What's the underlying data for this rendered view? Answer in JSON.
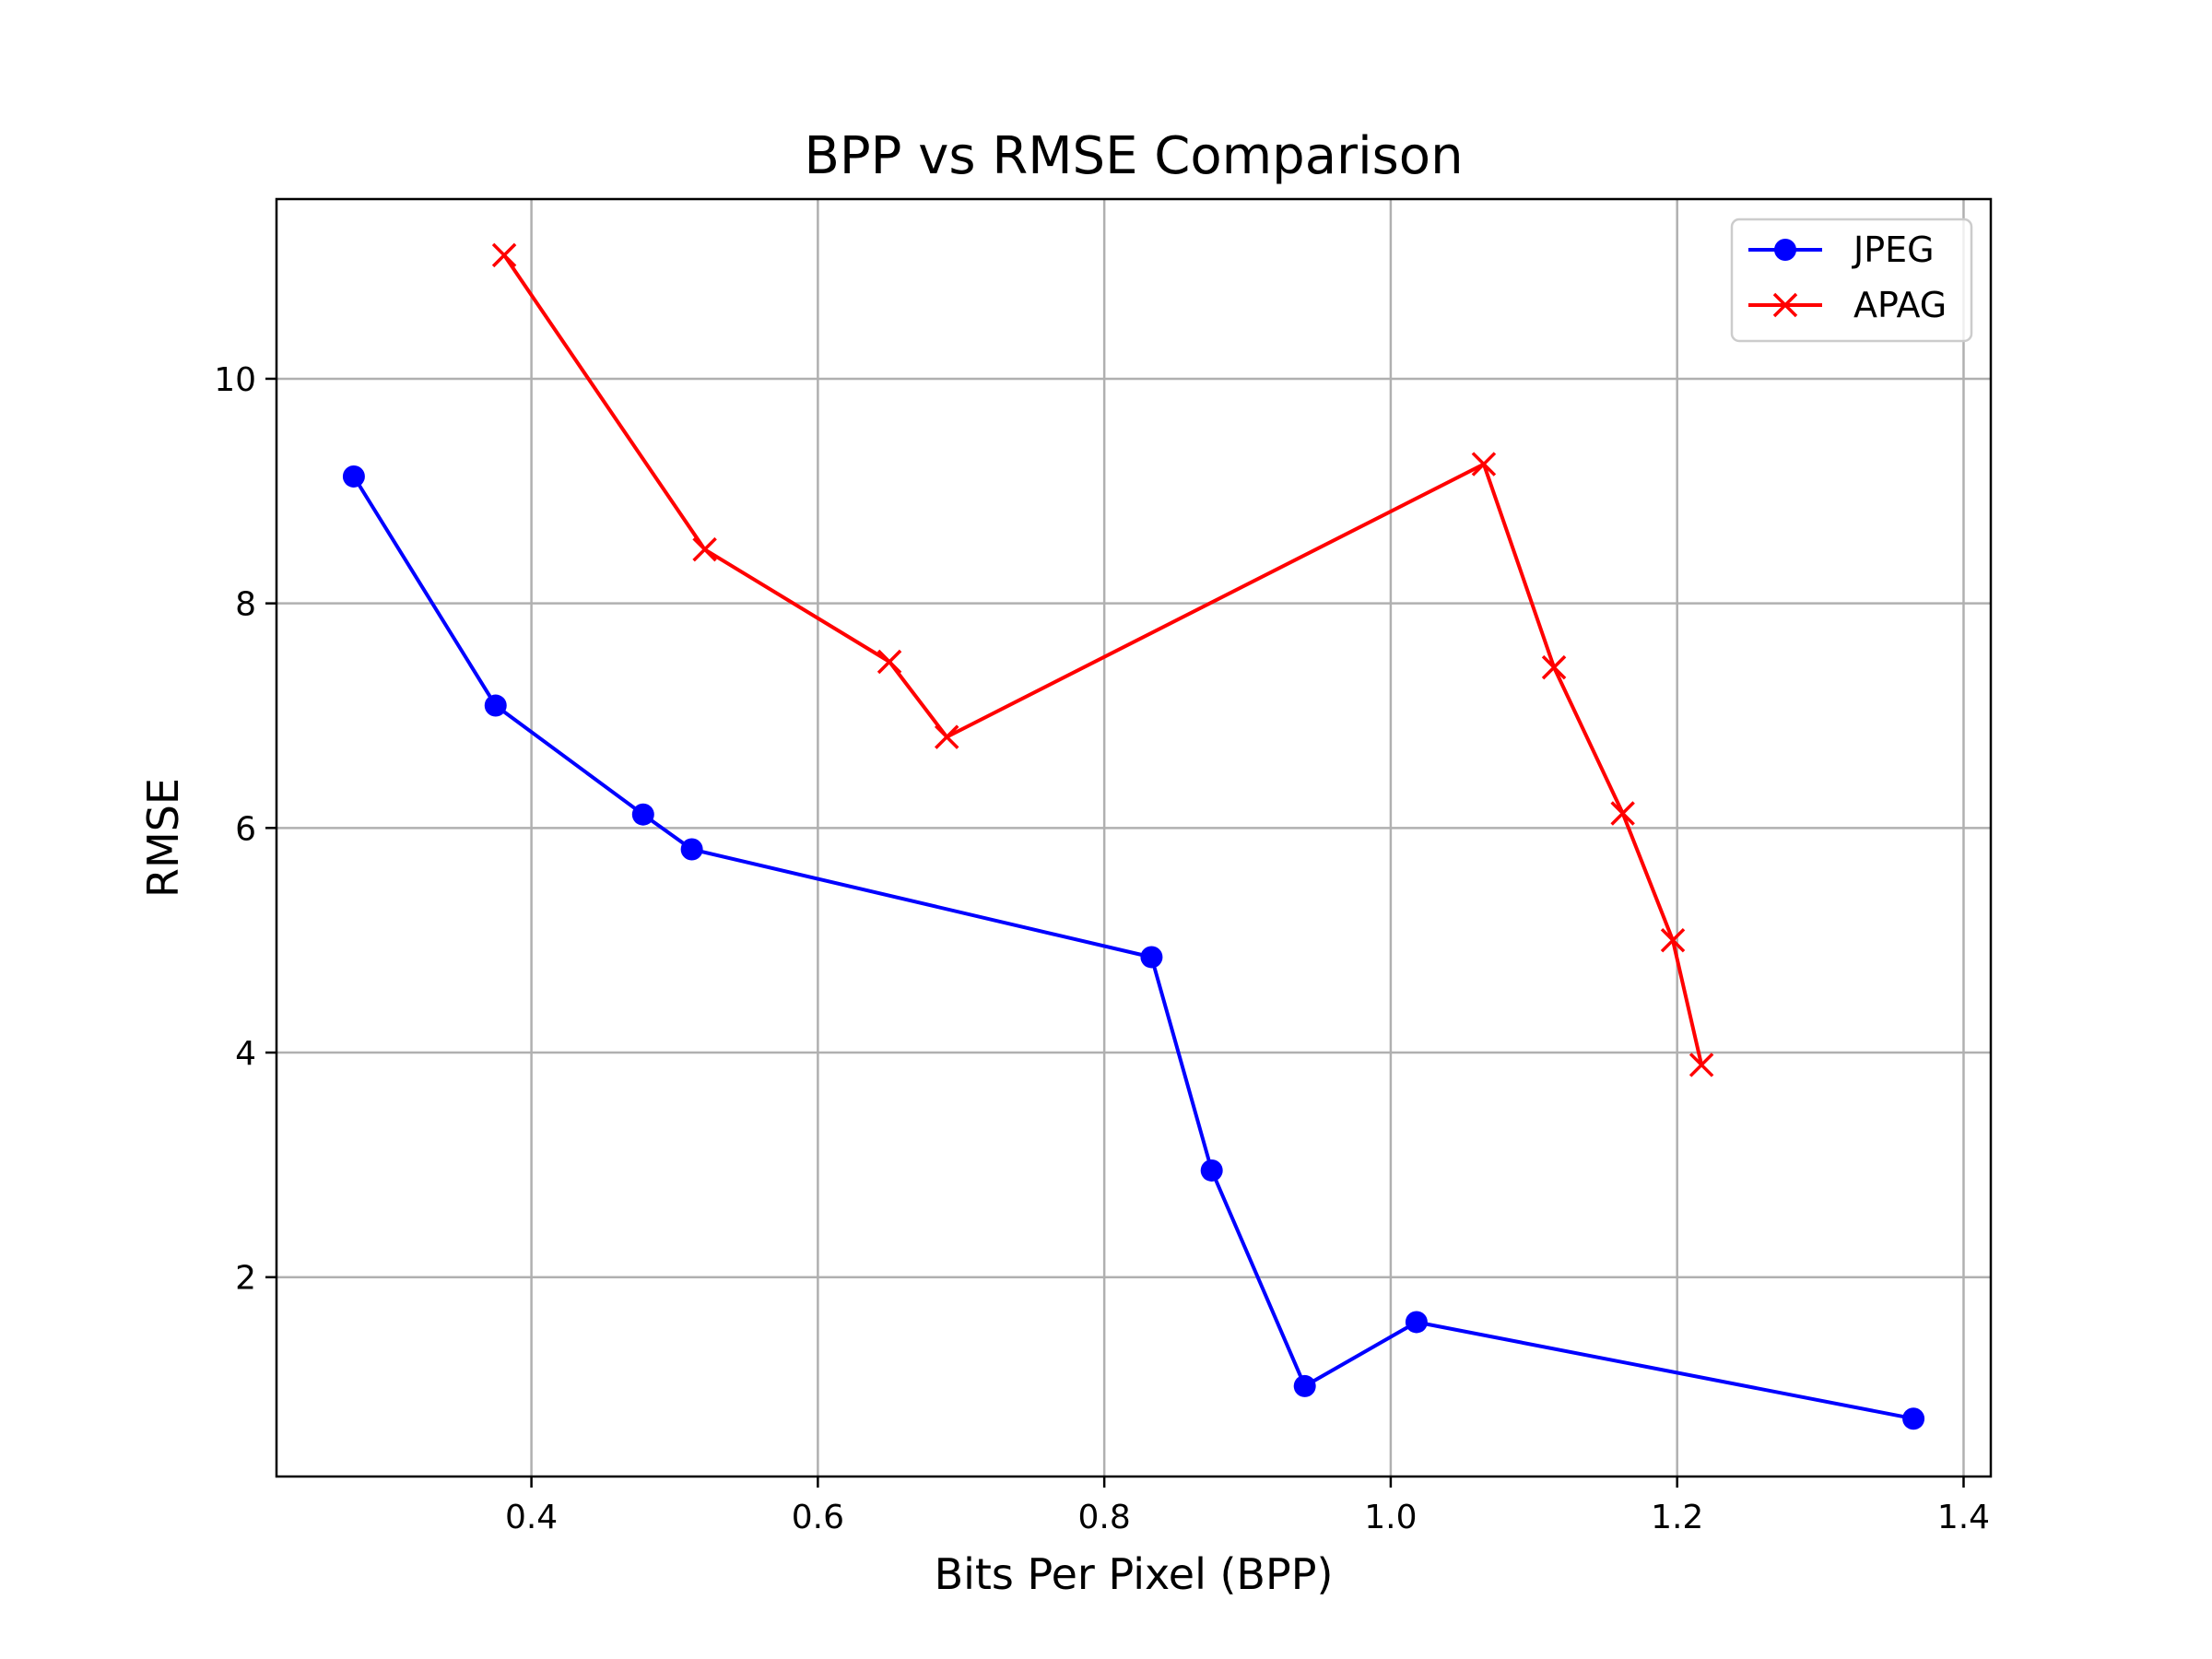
{
  "chart_data": {
    "type": "line",
    "title": "BPP vs RMSE Comparison",
    "xlabel": "Bits Per Pixel (BPP)",
    "ylabel": "RMSE",
    "xlim": [
      0.222,
      1.419
    ],
    "ylim": [
      0.225,
      11.6
    ],
    "xticks": [
      0.4,
      0.6,
      0.8,
      1.0,
      1.2,
      1.4
    ],
    "xtick_labels": [
      "0.4",
      "0.6",
      "0.8",
      "1.0",
      "1.2",
      "1.4"
    ],
    "yticks": [
      2,
      4,
      6,
      8,
      10
    ],
    "ytick_labels": [
      "2",
      "4",
      "6",
      "8",
      "10"
    ],
    "grid": true,
    "legend_position": "top-right",
    "series": [
      {
        "name": "JPEG",
        "color": "#0000ff",
        "marker": "circle",
        "x": [
          0.276,
          0.375,
          0.478,
          0.512,
          0.833,
          0.875,
          0.94,
          1.018,
          1.365
        ],
        "y": [
          9.13,
          7.09,
          6.12,
          5.81,
          4.85,
          2.95,
          1.03,
          1.6,
          0.74
        ]
      },
      {
        "name": "APAG",
        "color": "#ff0000",
        "marker": "x",
        "x": [
          0.381,
          0.521,
          0.65,
          0.69,
          1.065,
          1.114,
          1.162,
          1.197,
          1.217
        ],
        "y": [
          11.1,
          8.48,
          7.48,
          6.81,
          9.24,
          7.43,
          6.13,
          5.0,
          3.89
        ]
      }
    ]
  }
}
